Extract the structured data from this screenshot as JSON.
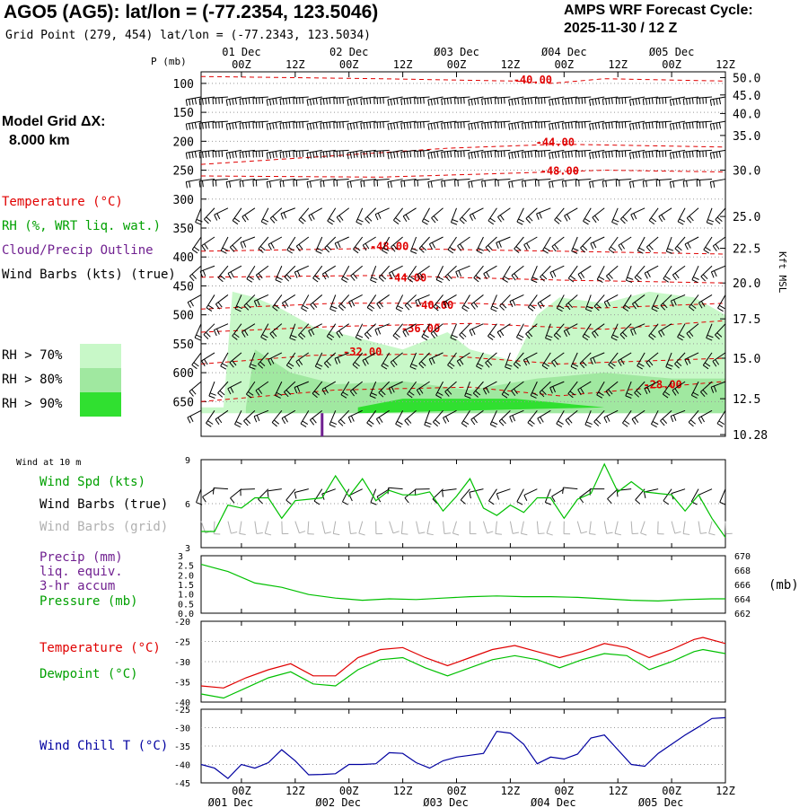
{
  "header": {
    "station": "AGO5 (AG5):  lat/lon = (-77.2354, 123.5046)",
    "grid_point": "Grid Point (279, 454) lat/lon = (-77.2343, 123.5034)",
    "cycle_label": "AMPS WRF Forecast Cycle:",
    "cycle_value": "2025-11-30 / 12  Z"
  },
  "model_grid": {
    "label": "Model Grid ΔX:",
    "value": "8.000 km"
  },
  "upper_legend": {
    "temperature": "Temperature (°C)",
    "rh": "RH (%, WRT liq. wat.)",
    "cloud": "Cloud/Precip Outline",
    "wind": "Wind Barbs (kts) (true)",
    "rh70": "RH > 70%",
    "rh80": "RH > 80%",
    "rh90": "RH > 90%"
  },
  "colors": {
    "temperature": "#e00000",
    "green": "#00c000",
    "cloud": "#702090",
    "rh70": "#c8f8c8",
    "rh80": "#a0e8a0",
    "rh90": "#30e030",
    "barb_grid": "#b0b0b0",
    "windchill": "#0000a0"
  },
  "time_axis": {
    "hour_labels": [
      "00Z",
      "12Z",
      "00Z",
      "12Z",
      "00Z",
      "12Z",
      "00Z",
      "12Z",
      "00Z",
      "12Z"
    ],
    "day_labels": [
      "01 Dec",
      "02 Dec",
      "03 Dec",
      "04 Dec",
      "05 Dec"
    ],
    "top_hour_labels": [
      "00Z",
      "12Z",
      "00Z",
      "12Z",
      "00Z",
      "12Z",
      "00Z",
      "12Z",
      "00Z",
      "12Z"
    ],
    "top_day_labels": [
      "01 Dec",
      "02 Dec",
      "Ø03 Dec",
      "Ø04 Dec",
      "Ø05 Dec"
    ],
    "bottom_day_labels": [
      "Ø01 Dec",
      "Ø02 Dec",
      "Ø03 Dec",
      "Ø04 Dec",
      "Ø05 Dec"
    ]
  },
  "chart_data": [
    {
      "type": "time-height",
      "name": "upper-air",
      "ylabel": "P (mb)",
      "pressure_ticks": [
        100,
        150,
        200,
        250,
        300,
        350,
        400,
        450,
        500,
        550,
        600,
        650
      ],
      "height_axis_label": "Kft MSL",
      "height_ticks": [
        "50.0",
        "45.0",
        "40.0",
        "35.0",
        "30.0",
        "25.0",
        "22.5",
        "20.0",
        "17.5",
        "15.0",
        "12.5",
        "10.28"
      ],
      "height_tick_pressures": [
        90,
        120,
        152,
        190,
        250,
        330,
        385,
        445,
        507,
        575,
        645,
        707
      ],
      "ylim": [
        80,
        710
      ],
      "xlim_hours": [
        0,
        117
      ],
      "temperature_contours": [
        {
          "label": "-40.00",
          "points": [
            [
              0,
              88
            ],
            [
              40,
              92
            ],
            [
              70,
              96
            ],
            [
              78,
              100
            ],
            [
              90,
              92
            ],
            [
              117,
              96
            ]
          ]
        },
        {
          "label": "-44.00",
          "points": [
            [
              0,
              240
            ],
            [
              30,
              225
            ],
            [
              55,
              212
            ],
            [
              80,
              205
            ],
            [
              117,
              210
            ]
          ]
        },
        {
          "label": "-48.00",
          "points": [
            [
              0,
              260
            ],
            [
              40,
              262
            ],
            [
              70,
              255
            ],
            [
              90,
              250
            ],
            [
              117,
              253
            ]
          ]
        },
        {
          "label": "-48.00",
          "points": [
            [
              0,
              390
            ],
            [
              40,
              385
            ],
            [
              80,
              390
            ],
            [
              117,
              395
            ]
          ]
        },
        {
          "label": "-44.00",
          "points": [
            [
              0,
              435
            ],
            [
              40,
              432
            ],
            [
              80,
              440
            ],
            [
              117,
              445
            ]
          ]
        },
        {
          "label": "-40.00",
          "points": [
            [
              0,
              490
            ],
            [
              30,
              480
            ],
            [
              60,
              480
            ],
            [
              90,
              488
            ],
            [
              117,
              480
            ]
          ]
        },
        {
          "label": "-36.00",
          "points": [
            [
              0,
              530
            ],
            [
              30,
              520
            ],
            [
              60,
              515
            ],
            [
              90,
              525
            ],
            [
              117,
              510
            ]
          ]
        },
        {
          "label": "-32.00",
          "points": [
            [
              0,
              585
            ],
            [
              25,
              570
            ],
            [
              50,
              568
            ],
            [
              80,
              585
            ],
            [
              117,
              575
            ]
          ]
        },
        {
          "label": "-28.00",
          "points": [
            [
              0,
              650
            ],
            [
              30,
              630
            ],
            [
              60,
              625
            ],
            [
              80,
              640
            ],
            [
              117,
              615
            ]
          ]
        }
      ],
      "temperature_label_positions": [
        [
          74,
          100
        ],
        [
          79,
          208
        ],
        [
          80,
          258
        ],
        [
          42,
          388
        ],
        [
          46,
          442
        ],
        [
          52,
          490
        ],
        [
          49,
          530
        ],
        [
          36,
          570
        ],
        [
          103,
          627
        ]
      ],
      "barb_levels": [
        108,
        150,
        200,
        250,
        300,
        350,
        400,
        450,
        500,
        550,
        600,
        650
      ],
      "barb_times_step_hours": 3,
      "rh_regions": [
        {
          "threshold": 70,
          "points": [
            [
              5,
              660
            ],
            [
              7,
              460
            ],
            [
              12,
              470
            ],
            [
              18,
              490
            ],
            [
              25,
              520
            ],
            [
              35,
              540
            ],
            [
              45,
              560
            ],
            [
              55,
              530
            ],
            [
              60,
              560
            ],
            [
              70,
              580
            ],
            [
              75,
              500
            ],
            [
              80,
              470
            ],
            [
              90,
              480
            ],
            [
              100,
              460
            ],
            [
              110,
              470
            ],
            [
              117,
              500
            ],
            [
              117,
              670
            ],
            [
              0,
              670
            ],
            [
              0,
              660
            ]
          ]
        },
        {
          "threshold": 80,
          "points": [
            [
              10,
              660
            ],
            [
              12,
              560
            ],
            [
              20,
              600
            ],
            [
              30,
              620
            ],
            [
              45,
              615
            ],
            [
              60,
              630
            ],
            [
              75,
              610
            ],
            [
              90,
              600
            ],
            [
              105,
              610
            ],
            [
              117,
              610
            ],
            [
              117,
              670
            ],
            [
              10,
              670
            ]
          ]
        },
        {
          "threshold": 90,
          "points": [
            [
              35,
              660
            ],
            [
              45,
              645
            ],
            [
              70,
              645
            ],
            [
              90,
              660
            ],
            [
              35,
              670
            ]
          ]
        }
      ]
    },
    {
      "type": "line",
      "name": "wind-10m",
      "title": "Wind at 10 m",
      "series_label": "Wind Spd (kts)",
      "barb_true_label": "Wind Barbs (true)",
      "barb_grid_label": "Wind Barbs (grid)",
      "yticks": [
        3,
        6,
        9
      ],
      "ylim": [
        3,
        9
      ],
      "x": [
        0,
        3,
        6,
        9,
        12,
        15,
        18,
        21,
        24,
        27,
        30,
        33,
        36,
        39,
        42,
        45,
        48,
        51,
        54,
        57,
        60,
        63,
        66,
        69,
        72,
        75,
        78,
        81,
        84,
        87,
        90,
        93,
        96,
        99,
        102,
        105,
        108,
        111,
        114,
        117
      ],
      "values": [
        4.1,
        4.1,
        5.9,
        5.7,
        6.4,
        6.4,
        5.0,
        6.2,
        6.3,
        6.4,
        7.9,
        6.5,
        7.7,
        6.2,
        6.9,
        6.6,
        6.6,
        6.8,
        5.5,
        6.5,
        7.7,
        5.7,
        5.2,
        5.9,
        5.4,
        6.4,
        6.4,
        5.0,
        6.3,
        6.7,
        8.7,
        6.8,
        7.5,
        6.8,
        6.7,
        6.6,
        5.5,
        6.6,
        5.0,
        3.7
      ]
    },
    {
      "type": "line",
      "name": "precip-pressure",
      "series_labels": [
        "Precip (mm)",
        "liq. equiv.",
        "3-hr accum",
        "Pressure (mb)"
      ],
      "yticks_left": [
        "3",
        "2.5",
        "2.0",
        "1.5",
        "1.0",
        "0.5",
        "0.0"
      ],
      "yticks_right": [
        "670",
        "668",
        "666",
        "664",
        "662"
      ],
      "right_unit": "(mb)",
      "ylim_right": [
        662,
        670
      ],
      "x": [
        0,
        6,
        12,
        18,
        24,
        30,
        36,
        42,
        48,
        54,
        60,
        66,
        72,
        78,
        84,
        90,
        96,
        102,
        108,
        114,
        117
      ],
      "pressure": [
        668.8,
        667.8,
        666.2,
        665.6,
        664.6,
        664.1,
        663.8,
        664.0,
        663.9,
        664.1,
        664.3,
        664.4,
        664.3,
        664.3,
        664.2,
        664.0,
        663.8,
        663.7,
        663.9,
        664.0,
        664.0
      ]
    },
    {
      "type": "line",
      "name": "temp-dewpoint",
      "series": [
        {
          "name": "Temperature (°C)",
          "color_key": "temperature",
          "values": [
            -36,
            -36.5,
            -34,
            -32,
            -30.5,
            -33.5,
            -33.5,
            -29,
            -27,
            -26.5,
            -29,
            -31,
            -29,
            -27,
            -26,
            -27.5,
            -29,
            -27.5,
            -25.5,
            -26.5,
            -29,
            -27,
            -24.5,
            -24,
            -25.5
          ]
        },
        {
          "name": "Dewpoint (°C)",
          "color_key": "green",
          "values": [
            -38,
            -39,
            -36.5,
            -34,
            -32.5,
            -35.5,
            -36,
            -32,
            -29.5,
            -29,
            -31.5,
            -33.5,
            -31.5,
            -29.5,
            -28.5,
            -29.5,
            -31.5,
            -29.5,
            -28,
            -28.5,
            -32,
            -30,
            -27.5,
            -27,
            -28
          ]
        }
      ],
      "x": [
        0,
        5,
        10,
        15,
        20,
        25,
        30,
        35,
        40,
        45,
        50,
        55,
        60,
        65,
        70,
        75,
        80,
        85,
        90,
        95,
        100,
        105,
        110,
        112,
        117
      ],
      "yticks": [
        -20,
        -25,
        -30,
        -35,
        -40
      ],
      "ylim": [
        -40,
        -20
      ]
    },
    {
      "type": "line",
      "name": "wind-chill",
      "series_label": "Wind Chill T (°C)",
      "yticks": [
        -25,
        -30,
        -35,
        -40,
        -45
      ],
      "ylim": [
        -45,
        -25
      ],
      "x": [
        0,
        3,
        6,
        9,
        12,
        15,
        18,
        21,
        24,
        27,
        30,
        33,
        36,
        39,
        42,
        45,
        48,
        51,
        54,
        57,
        60,
        63,
        66,
        69,
        72,
        75,
        78,
        81,
        84,
        87,
        90,
        93,
        96,
        99,
        102,
        105,
        108,
        111,
        114,
        117
      ],
      "values": [
        -40,
        -41,
        -43.8,
        -40,
        -41,
        -39.5,
        -36,
        -39,
        -42.8,
        -42.7,
        -42.5,
        -40,
        -40,
        -39.8,
        -36.8,
        -37,
        -39.5,
        -41,
        -39,
        -38,
        -37.5,
        -37,
        -31,
        -31.5,
        -34.5,
        -39.8,
        -38,
        -38.5,
        -37.2,
        -32.8,
        -32,
        -36,
        -40,
        -40.5,
        -37,
        -34.5,
        -32,
        -29.8,
        -27.5,
        -27.3
      ]
    }
  ]
}
